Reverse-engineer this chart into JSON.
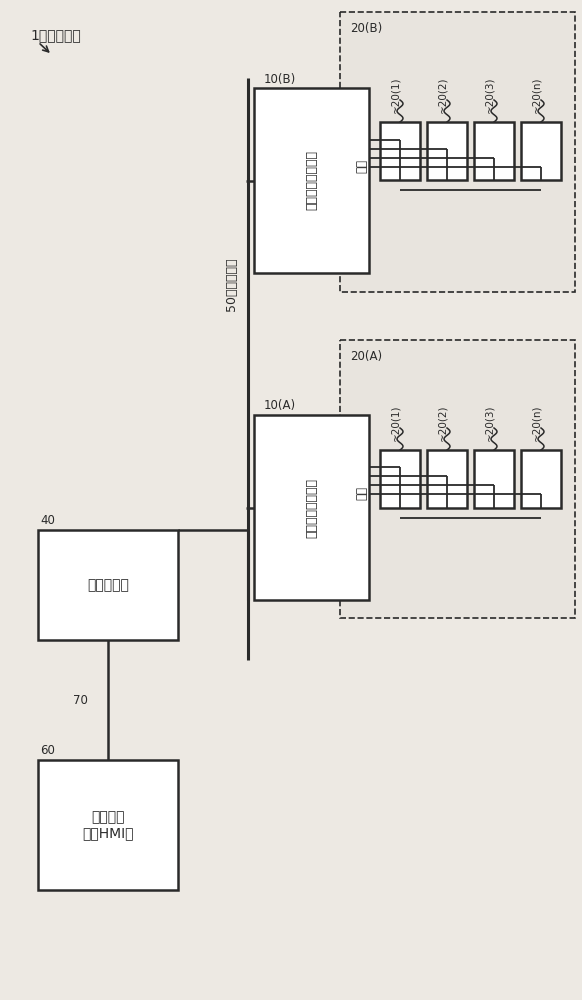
{
  "bg_color": "#ede9e3",
  "line_color": "#2a2a2a",
  "box_fill": "#ffffff",
  "dashed_fill": "#e8e4de",
  "title_label": "1：控制系统",
  "field_network_label": "50：现场网络",
  "upper_controller_label": "上位控制器",
  "upper_controller_id": "40",
  "support_tool_label": "支持工具\n（或HMI）",
  "support_tool_id": "60",
  "link_id": "70",
  "slave_A_label": "设备通信管理单元",
  "slave_A_id": "10(A)",
  "slave_B_label": "设备通信管理单元",
  "slave_B_id": "10(B)",
  "group_A_label": "20(A)",
  "group_B_label": "20(B)",
  "devices_label": "设备",
  "device_labels_A": [
    "20(1)",
    "20(2)",
    "20(3)",
    "20(n)"
  ],
  "device_labels_B": [
    "20(1)",
    "20(2)",
    "20(3)",
    "20(n)"
  ]
}
